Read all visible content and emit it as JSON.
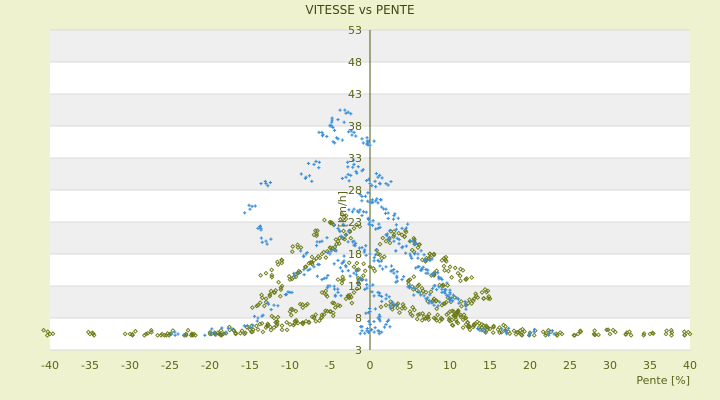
{
  "chart_data": {
    "type": "scatter",
    "title": "VITESSE vs PENTE",
    "xlabel": "Pente [%]",
    "ylabel": "[km/h]",
    "xlim": [
      -40,
      40
    ],
    "ylim": [
      3,
      53
    ],
    "x_ticks": [
      "-40",
      "-35",
      "-30",
      "-25",
      "-20",
      "-15",
      "-10",
      "-5",
      "0",
      "5",
      "10",
      "15",
      "20",
      "25",
      "30",
      "35",
      "40"
    ],
    "y_ticks": [
      "3",
      "8",
      "13",
      "18",
      "23",
      "28",
      "33",
      "38",
      "43",
      "48",
      "53"
    ],
    "grid": "horizontal alternating bands",
    "legend": "none",
    "series": [
      {
        "color": "#6b7a16",
        "marker": "diamond-small",
        "description_points": [
          [
            -40,
            5.5
          ],
          [
            -35,
            5.5
          ],
          [
            -30,
            5.5
          ],
          [
            -28,
            5.5
          ],
          [
            -26,
            5.5
          ],
          [
            -25,
            5.5
          ],
          [
            -23,
            5.5
          ],
          [
            -22,
            5.5
          ],
          [
            -20,
            5.5
          ],
          [
            -19,
            5.7
          ],
          [
            -18,
            5.6
          ],
          [
            -17,
            6
          ],
          [
            -16,
            6
          ],
          [
            -15,
            6.2
          ],
          [
            -14,
            6.2
          ],
          [
            -13,
            6.5
          ],
          [
            -12,
            6.5
          ],
          [
            -11,
            6.8
          ],
          [
            -10,
            7
          ],
          [
            -9,
            7.2
          ],
          [
            -8,
            7.5
          ],
          [
            -7,
            8
          ],
          [
            -6,
            8.5
          ],
          [
            -5,
            9
          ],
          [
            -4,
            10
          ],
          [
            -3,
            11
          ],
          [
            -2,
            12
          ],
          [
            -1,
            14
          ],
          [
            -14,
            10
          ],
          [
            -13,
            11
          ],
          [
            -12,
            12
          ],
          [
            -11,
            13
          ],
          [
            -10,
            14
          ],
          [
            -9,
            15
          ],
          [
            -8,
            16
          ],
          [
            -7,
            17
          ],
          [
            -6,
            18
          ],
          [
            -5,
            19
          ],
          [
            -4,
            20
          ],
          [
            -3,
            21
          ],
          [
            -2,
            22
          ],
          [
            -12,
            8
          ],
          [
            -10,
            9
          ],
          [
            -8,
            10
          ],
          [
            -6,
            12
          ],
          [
            -4,
            14
          ],
          [
            -2,
            16
          ],
          [
            -13,
            15
          ],
          [
            -11,
            17
          ],
          [
            -9,
            19
          ],
          [
            -7,
            21
          ],
          [
            -5,
            23
          ],
          [
            -3,
            24
          ],
          [
            0,
            16
          ],
          [
            1,
            18
          ],
          [
            2,
            20
          ],
          [
            3,
            21
          ],
          [
            4,
            21
          ],
          [
            5,
            20
          ],
          [
            6,
            19
          ],
          [
            7,
            17
          ],
          [
            8,
            15
          ],
          [
            9,
            13
          ],
          [
            10,
            11
          ],
          [
            11,
            9
          ],
          [
            12,
            8
          ],
          [
            13,
            7
          ],
          [
            14,
            6.5
          ],
          [
            2,
            10
          ],
          [
            3,
            10
          ],
          [
            4,
            9.5
          ],
          [
            5,
            9
          ],
          [
            6,
            8.5
          ],
          [
            7,
            8
          ],
          [
            8,
            8
          ],
          [
            9,
            7.8
          ],
          [
            10,
            7.5
          ],
          [
            11,
            7.2
          ],
          [
            12,
            7
          ],
          [
            13,
            6.8
          ],
          [
            14,
            6.5
          ],
          [
            15,
            6.3
          ],
          [
            16,
            6.2
          ],
          [
            17,
            6
          ],
          [
            18,
            6
          ],
          [
            19,
            5.8
          ],
          [
            20,
            5.7
          ],
          [
            22,
            5.6
          ],
          [
            24,
            5.5
          ],
          [
            26,
            5.5
          ],
          [
            28,
            5.5
          ],
          [
            30,
            5.5
          ],
          [
            32,
            5.5
          ],
          [
            35,
            5.5
          ],
          [
            37,
            5.5
          ],
          [
            40,
            5.5
          ],
          [
            5,
            14
          ],
          [
            6,
            13
          ],
          [
            7,
            12
          ],
          [
            8,
            11
          ],
          [
            9,
            10
          ],
          [
            10,
            9
          ],
          [
            11,
            9
          ],
          [
            12,
            10
          ],
          [
            13,
            11
          ],
          [
            14,
            12
          ],
          [
            15,
            11
          ],
          [
            8,
            18
          ],
          [
            9,
            17
          ],
          [
            10,
            16
          ],
          [
            11,
            15
          ],
          [
            12,
            14
          ]
        ]
      },
      {
        "color": "#3a8fd8",
        "marker": "plus-small",
        "description_points": [
          [
            -5,
            38
          ],
          [
            -4,
            39
          ],
          [
            -3,
            40
          ],
          [
            -2,
            37
          ],
          [
            -1,
            36
          ],
          [
            0,
            35
          ],
          [
            -6,
            37
          ],
          [
            -4,
            36
          ],
          [
            -7,
            32
          ],
          [
            -8,
            30
          ],
          [
            -13,
            29
          ],
          [
            -15,
            25
          ],
          [
            -14,
            22
          ],
          [
            -13,
            20
          ],
          [
            -3,
            30
          ],
          [
            -2,
            32
          ],
          [
            -1,
            31
          ],
          [
            0,
            29
          ],
          [
            1,
            30
          ],
          [
            2,
            29
          ],
          [
            -1,
            27
          ],
          [
            0,
            26
          ],
          [
            1,
            26
          ],
          [
            2,
            25
          ],
          [
            3,
            24
          ],
          [
            4,
            22
          ],
          [
            5,
            20
          ],
          [
            6,
            18
          ],
          [
            7,
            17
          ],
          [
            8,
            15
          ],
          [
            9,
            14
          ],
          [
            10,
            12
          ],
          [
            11,
            11
          ],
          [
            12,
            10
          ],
          [
            -2,
            25
          ],
          [
            -1,
            24
          ],
          [
            0,
            23
          ],
          [
            1,
            22
          ],
          [
            2,
            21
          ],
          [
            3,
            20
          ],
          [
            4,
            19
          ],
          [
            5,
            18
          ],
          [
            6,
            16
          ],
          [
            7,
            15
          ],
          [
            8,
            13
          ],
          [
            9,
            12
          ],
          [
            10,
            11
          ],
          [
            -4,
            22
          ],
          [
            -3,
            21
          ],
          [
            -2,
            20
          ],
          [
            -1,
            19
          ],
          [
            0,
            18
          ],
          [
            1,
            17
          ],
          [
            2,
            16
          ],
          [
            3,
            15
          ],
          [
            4,
            14
          ],
          [
            5,
            13
          ],
          [
            6,
            12
          ],
          [
            7,
            11
          ],
          [
            8,
            10
          ],
          [
            -6,
            20
          ],
          [
            -5,
            18
          ],
          [
            -4,
            17
          ],
          [
            -3,
            16
          ],
          [
            -2,
            15
          ],
          [
            -1,
            14
          ],
          [
            0,
            13
          ],
          [
            1,
            12
          ],
          [
            2,
            11
          ],
          [
            3,
            10
          ],
          [
            -8,
            18
          ],
          [
            -7,
            16
          ],
          [
            -6,
            14
          ],
          [
            -5,
            13
          ],
          [
            -4,
            12
          ],
          [
            -9,
            15
          ],
          [
            -10,
            12
          ],
          [
            -12,
            10
          ],
          [
            -14,
            8
          ],
          [
            -15,
            6.5
          ],
          [
            -18,
            5.8
          ],
          [
            -20,
            5.6
          ],
          [
            -24,
            5.5
          ],
          [
            0,
            7
          ],
          [
            0,
            6
          ],
          [
            1,
            6
          ],
          [
            -1,
            6
          ],
          [
            2,
            7
          ],
          [
            0,
            9
          ],
          [
            1,
            8
          ],
          [
            14,
            6
          ],
          [
            17,
            5.8
          ],
          [
            20,
            5.6
          ],
          [
            23,
            5.5
          ]
        ]
      }
    ]
  }
}
